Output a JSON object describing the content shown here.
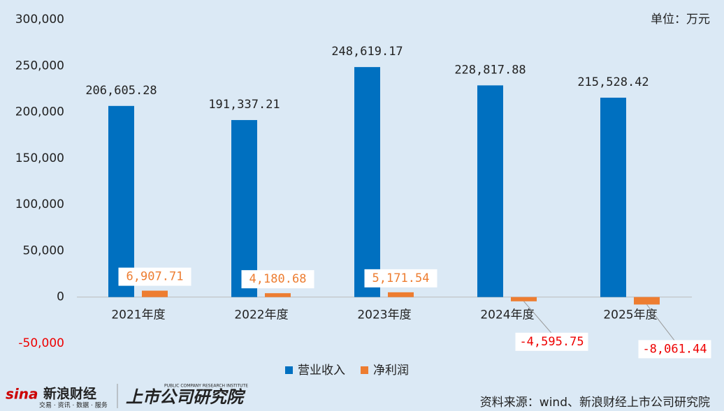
{
  "chart_data": {
    "type": "bar",
    "unit": "单位：万元",
    "categories": [
      "2021年度",
      "2022年度",
      "2023年度",
      "2024年度",
      "2025年度"
    ],
    "series": [
      {
        "name": "营业收入",
        "color": "#0070c0",
        "values": [
          206605.28,
          191337.21,
          248619.17,
          228817.88,
          215528.42
        ],
        "value_labels": [
          "206,605.28",
          "191,337.21",
          "248,619.17",
          "228,817.88",
          "215,528.42"
        ]
      },
      {
        "name": "净利润",
        "color": "#ed7d31",
        "values": [
          6907.71,
          4180.68,
          5171.54,
          -4595.75,
          -8061.44
        ],
        "value_labels": [
          "6,907.71",
          "4,180.68",
          "5,171.54",
          "-4,595.75",
          "-8,061.44"
        ]
      }
    ],
    "ylim": [
      -50000,
      300000
    ],
    "yticks": [
      {
        "value": -50000,
        "label": "-50,000"
      },
      0,
      {
        "value": 50000,
        "label": "50,000"
      },
      {
        "value": 100000,
        "label": "100,000"
      },
      {
        "value": 150000,
        "label": "150,000"
      },
      {
        "value": 200000,
        "label": "200,000"
      },
      {
        "value": 250000,
        "label": "250,000"
      },
      {
        "value": 300000,
        "label": "300,000"
      }
    ],
    "grid": false,
    "legend": "bottom",
    "source": "资料来源：wind、新浪财经上市公司研究院",
    "brand": [
      "sina",
      "新浪财经",
      "交易 · 资讯 · 数据 · 服务",
      "上市公司研究院",
      "PUBLIC COMPANY RESEARCH INSTITUTE"
    ]
  }
}
